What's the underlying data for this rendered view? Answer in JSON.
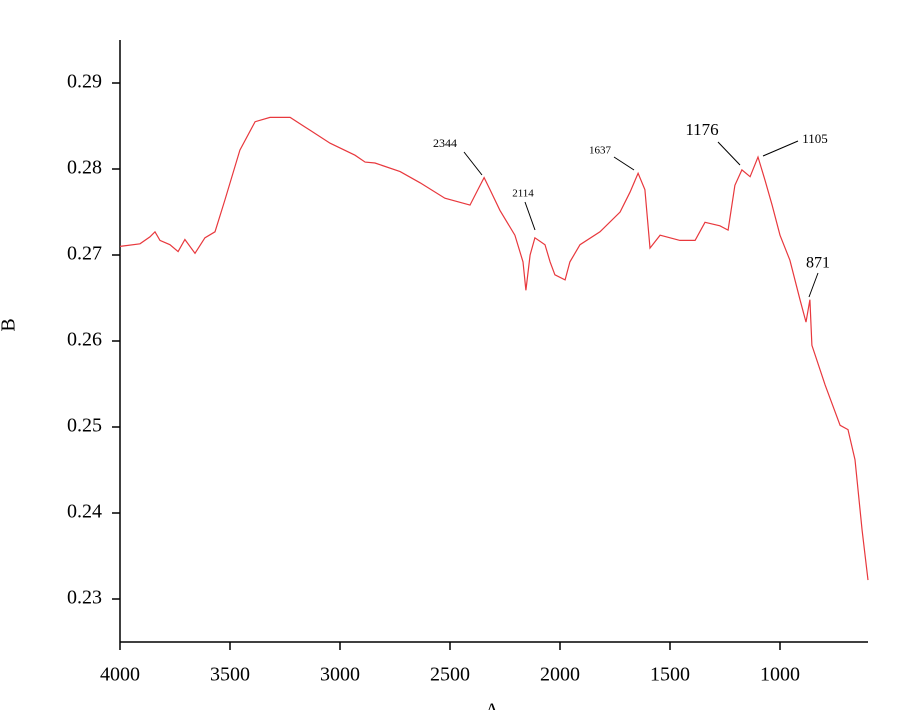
{
  "chart_data": {
    "type": "line",
    "x_label": "A",
    "y_label": "B",
    "color": "#e8383d",
    "x": [
      4000,
      3909,
      3864,
      3841,
      3818,
      3773,
      3736,
      3705,
      3659,
      3614,
      3568,
      3523,
      3455,
      3386,
      3318,
      3227,
      3136,
      3045,
      2932,
      2886,
      2841,
      2727,
      2636,
      2523,
      2409,
      2373,
      2345,
      2318,
      2273,
      2205,
      2168,
      2155,
      2136,
      2114,
      2068,
      2045,
      2023,
      1977,
      1955,
      1909,
      1818,
      1727,
      1682,
      1645,
      1614,
      1591,
      1545,
      1455,
      1386,
      1341,
      1273,
      1236,
      1205,
      1173,
      1136,
      1100,
      1068,
      1036,
      1000,
      955,
      909,
      882,
      864,
      855,
      795,
      727,
      691,
      659,
      627,
      600
    ],
    "values": [
      0.271,
      0.2713,
      0.2721,
      0.2727,
      0.2717,
      0.2712,
      0.2704,
      0.2718,
      0.2702,
      0.272,
      0.2727,
      0.2764,
      0.2822,
      0.2855,
      0.286,
      0.286,
      0.2845,
      0.283,
      0.2816,
      0.2808,
      0.2807,
      0.2797,
      0.2784,
      0.2766,
      0.2758,
      0.2776,
      0.279,
      0.2776,
      0.2752,
      0.2723,
      0.2692,
      0.2659,
      0.27,
      0.272,
      0.2712,
      0.2692,
      0.2677,
      0.2671,
      0.2692,
      0.2712,
      0.2727,
      0.275,
      0.2773,
      0.2795,
      0.2776,
      0.2708,
      0.2723,
      0.2717,
      0.2717,
      0.2738,
      0.2734,
      0.2729,
      0.2781,
      0.2799,
      0.2791,
      0.2814,
      0.2787,
      0.2758,
      0.2723,
      0.2694,
      0.2648,
      0.2622,
      0.2648,
      0.2595,
      0.2549,
      0.2502,
      0.2497,
      0.2462,
      0.238,
      0.2322
    ],
    "xlim": [
      4000,
      600
    ],
    "xticks": [
      4000,
      3500,
      3000,
      2500,
      2000,
      1500,
      1000
    ],
    "ylim": [
      0.225,
      0.295
    ],
    "yticks": [
      0.23,
      0.24,
      0.25,
      0.26,
      0.27,
      0.28,
      0.29
    ],
    "annotations": [
      "2344",
      "2114",
      "1637",
      "1176",
      "1105",
      "871"
    ]
  }
}
